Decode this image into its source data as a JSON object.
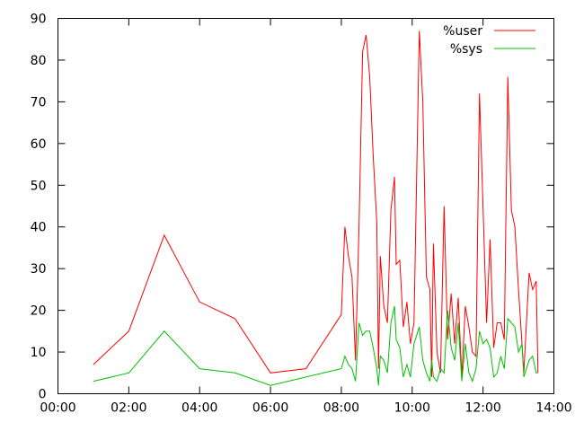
{
  "chart_data": {
    "type": "line",
    "title": "",
    "xlabel": "",
    "ylabel": "",
    "xlim": [
      0,
      14
    ],
    "ylim": [
      0,
      90
    ],
    "x_ticks": [
      {
        "value": 0,
        "label": "00:00"
      },
      {
        "value": 2,
        "label": "02:00"
      },
      {
        "value": 4,
        "label": "04:00"
      },
      {
        "value": 6,
        "label": "06:00"
      },
      {
        "value": 8,
        "label": "08:00"
      },
      {
        "value": 10,
        "label": "10:00"
      },
      {
        "value": 12,
        "label": "12:00"
      },
      {
        "value": 14,
        "label": "14:00"
      }
    ],
    "y_ticks": [
      {
        "value": 0,
        "label": "0"
      },
      {
        "value": 10,
        "label": "10"
      },
      {
        "value": 20,
        "label": "20"
      },
      {
        "value": 30,
        "label": "30"
      },
      {
        "value": 40,
        "label": "40"
      },
      {
        "value": 50,
        "label": "50"
      },
      {
        "value": 60,
        "label": "60"
      },
      {
        "value": 70,
        "label": "70"
      },
      {
        "value": 80,
        "label": "80"
      },
      {
        "value": 90,
        "label": "90"
      }
    ],
    "grid": false,
    "legend_position": "top-right",
    "series": [
      {
        "name": "%user",
        "color": "#ff0000",
        "points": [
          [
            1.0,
            7
          ],
          [
            2.0,
            15
          ],
          [
            3.0,
            38
          ],
          [
            4.0,
            22
          ],
          [
            5.0,
            18
          ],
          [
            6.0,
            5
          ],
          [
            7.0,
            6
          ],
          [
            8.0,
            19
          ],
          [
            8.1,
            40
          ],
          [
            8.2,
            33
          ],
          [
            8.3,
            28
          ],
          [
            8.4,
            8
          ],
          [
            8.5,
            40
          ],
          [
            8.6,
            82
          ],
          [
            8.7,
            86
          ],
          [
            8.8,
            76
          ],
          [
            8.9,
            57
          ],
          [
            9.0,
            41
          ],
          [
            9.05,
            6
          ],
          [
            9.1,
            33
          ],
          [
            9.2,
            21
          ],
          [
            9.3,
            17
          ],
          [
            9.4,
            44
          ],
          [
            9.5,
            52
          ],
          [
            9.55,
            31
          ],
          [
            9.65,
            32
          ],
          [
            9.75,
            16
          ],
          [
            9.85,
            22
          ],
          [
            9.95,
            12
          ],
          [
            10.05,
            17
          ],
          [
            10.2,
            87
          ],
          [
            10.3,
            70
          ],
          [
            10.4,
            28
          ],
          [
            10.5,
            25
          ],
          [
            10.55,
            4
          ],
          [
            10.6,
            36
          ],
          [
            10.7,
            10
          ],
          [
            10.8,
            5
          ],
          [
            10.9,
            45
          ],
          [
            11.0,
            13
          ],
          [
            11.1,
            24
          ],
          [
            11.2,
            12
          ],
          [
            11.3,
            23
          ],
          [
            11.4,
            4
          ],
          [
            11.5,
            21
          ],
          [
            11.6,
            16
          ],
          [
            11.7,
            10
          ],
          [
            11.8,
            9
          ],
          [
            11.9,
            72
          ],
          [
            12.0,
            45
          ],
          [
            12.1,
            17
          ],
          [
            12.2,
            37
          ],
          [
            12.3,
            11
          ],
          [
            12.4,
            17
          ],
          [
            12.5,
            17
          ],
          [
            12.6,
            13
          ],
          [
            12.7,
            76
          ],
          [
            12.8,
            44
          ],
          [
            12.9,
            40
          ],
          [
            13.0,
            25
          ],
          [
            13.1,
            12
          ],
          [
            13.15,
            5
          ],
          [
            13.3,
            29
          ],
          [
            13.4,
            25
          ],
          [
            13.5,
            27
          ],
          [
            13.55,
            5
          ]
        ]
      },
      {
        "name": "%sys",
        "color": "#00c000",
        "points": [
          [
            1.0,
            3
          ],
          [
            2.0,
            5
          ],
          [
            3.0,
            15
          ],
          [
            4.0,
            6
          ],
          [
            5.0,
            5
          ],
          [
            6.0,
            2
          ],
          [
            7.0,
            4
          ],
          [
            8.0,
            6
          ],
          [
            8.1,
            9
          ],
          [
            8.2,
            7
          ],
          [
            8.3,
            6
          ],
          [
            8.4,
            3
          ],
          [
            8.5,
            17
          ],
          [
            8.6,
            14
          ],
          [
            8.7,
            15
          ],
          [
            8.8,
            15
          ],
          [
            8.9,
            11
          ],
          [
            9.0,
            6
          ],
          [
            9.05,
            2
          ],
          [
            9.1,
            9
          ],
          [
            9.2,
            8
          ],
          [
            9.3,
            5
          ],
          [
            9.4,
            17
          ],
          [
            9.5,
            21
          ],
          [
            9.55,
            13
          ],
          [
            9.65,
            11
          ],
          [
            9.75,
            4
          ],
          [
            9.85,
            7
          ],
          [
            9.95,
            4
          ],
          [
            10.05,
            12
          ],
          [
            10.2,
            16
          ],
          [
            10.3,
            8
          ],
          [
            10.4,
            5
          ],
          [
            10.5,
            3
          ],
          [
            10.55,
            8
          ],
          [
            10.6,
            4
          ],
          [
            10.7,
            3
          ],
          [
            10.8,
            6
          ],
          [
            10.9,
            5
          ],
          [
            11.0,
            20
          ],
          [
            11.1,
            11
          ],
          [
            11.2,
            8
          ],
          [
            11.3,
            17
          ],
          [
            11.4,
            3
          ],
          [
            11.5,
            12
          ],
          [
            11.6,
            5
          ],
          [
            11.7,
            3
          ],
          [
            11.8,
            6
          ],
          [
            11.9,
            15
          ],
          [
            12.0,
            12
          ],
          [
            12.1,
            13
          ],
          [
            12.2,
            11
          ],
          [
            12.3,
            4
          ],
          [
            12.4,
            5
          ],
          [
            12.5,
            9
          ],
          [
            12.6,
            6
          ],
          [
            12.7,
            18
          ],
          [
            12.8,
            17
          ],
          [
            12.9,
            16
          ],
          [
            13.0,
            10
          ],
          [
            13.1,
            12
          ],
          [
            13.15,
            4
          ],
          [
            13.3,
            8
          ],
          [
            13.4,
            9
          ],
          [
            13.5,
            5
          ],
          [
            13.55,
            5
          ]
        ]
      }
    ]
  }
}
